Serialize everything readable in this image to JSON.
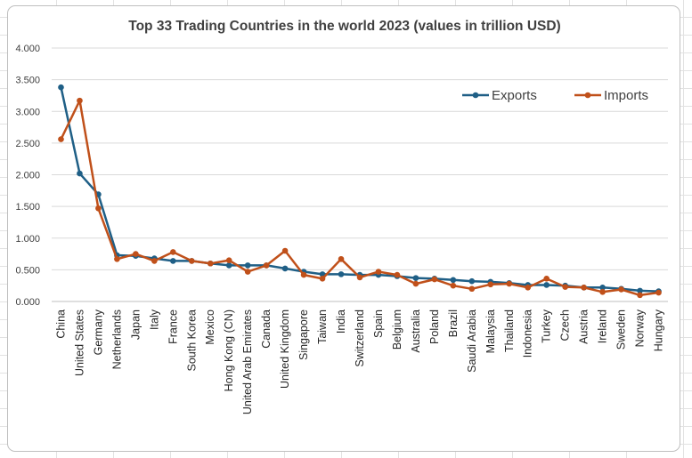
{
  "chart_data": {
    "type": "line",
    "title": "Top 33 Trading Countries in the world 2023 (values in trillion USD)",
    "categories": [
      "China",
      "United States",
      "Germany",
      "Netherlands",
      "Japan",
      "Italy",
      "France",
      "South Korea",
      "Mexico",
      "Hong Kong (CN)",
      "United Arab Emirates",
      "Canada",
      "United Kingdom",
      "Singapore",
      "Taiwan",
      "India",
      "Switzerland",
      "Spain",
      "Belgium",
      "Australia",
      "Poland",
      "Brazil",
      "Saudi Arabia",
      "Malaysia",
      "Thailand",
      "Indonesia",
      "Turkey",
      "Czech",
      "Austria",
      "Ireland",
      "Sweden",
      "Norway",
      "Hungary"
    ],
    "yticks": [
      "4.000",
      "3.500",
      "3.000",
      "2.500",
      "2.000",
      "1.500",
      "1.000",
      "0.500",
      "0.000"
    ],
    "ylim": [
      0,
      4
    ],
    "grid": true,
    "legend_position": "top-right",
    "series": [
      {
        "name": "Exports",
        "color": "#1f5f86",
        "values": [
          3.38,
          2.02,
          1.69,
          0.73,
          0.72,
          0.68,
          0.64,
          0.64,
          0.6,
          0.57,
          0.57,
          0.57,
          0.52,
          0.47,
          0.43,
          0.43,
          0.42,
          0.42,
          0.4,
          0.37,
          0.36,
          0.34,
          0.32,
          0.31,
          0.29,
          0.26,
          0.26,
          0.25,
          0.22,
          0.22,
          0.2,
          0.17,
          0.16
        ]
      },
      {
        "name": "Imports",
        "color": "#c0501a",
        "values": [
          2.56,
          3.17,
          1.47,
          0.67,
          0.75,
          0.64,
          0.78,
          0.64,
          0.6,
          0.65,
          0.47,
          0.57,
          0.8,
          0.42,
          0.36,
          0.67,
          0.38,
          0.47,
          0.42,
          0.28,
          0.35,
          0.25,
          0.2,
          0.27,
          0.28,
          0.22,
          0.36,
          0.23,
          0.22,
          0.15,
          0.19,
          0.1,
          0.14
        ]
      }
    ]
  }
}
